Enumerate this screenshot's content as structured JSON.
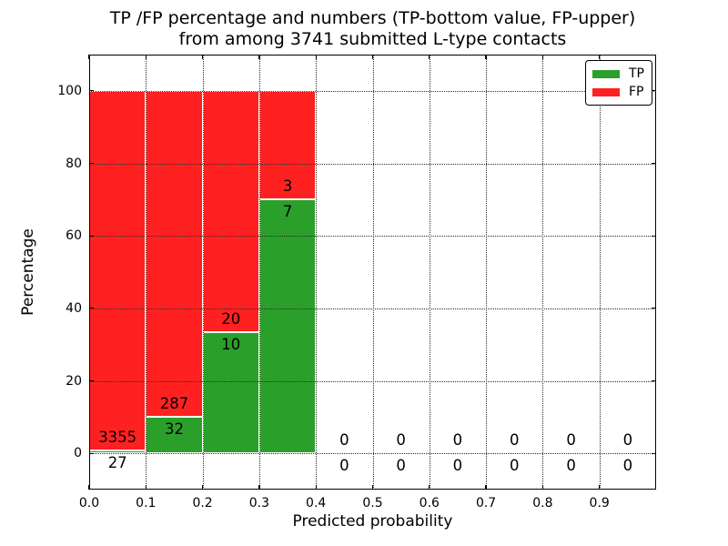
{
  "chart_data": {
    "type": "bar",
    "stacked": true,
    "title_line1": "TP /FP percentage and numbers (TP-bottom value, FP-upper)",
    "title_line2": "from among 3741 submitted L-type contacts",
    "xlabel": "Predicted probability",
    "ylabel": "Percentage",
    "xlim": [
      0.0,
      1.0
    ],
    "ylim": [
      -10,
      110
    ],
    "xticks": [
      0.0,
      0.1,
      0.2,
      0.3,
      0.4,
      0.5,
      0.6,
      0.7,
      0.8,
      0.9
    ],
    "xtick_labels": [
      "0.0",
      "0.1",
      "0.2",
      "0.3",
      "0.4",
      "0.5",
      "0.6",
      "0.7",
      "0.8",
      "0.9"
    ],
    "yticks": [
      0,
      20,
      40,
      60,
      80,
      100
    ],
    "ytick_labels": [
      "0",
      "20",
      "40",
      "60",
      "80",
      "100"
    ],
    "grid": "dotted, drawn above bars",
    "legend_position": "upper right",
    "total_contacts": 3741,
    "bins": [
      {
        "range": [
          0.0,
          0.1
        ],
        "tp": 27,
        "fp": 3355,
        "tp_pct": 0.8,
        "fp_pct": 99.2
      },
      {
        "range": [
          0.1,
          0.2
        ],
        "tp": 32,
        "fp": 287,
        "tp_pct": 10.0,
        "fp_pct": 90.0
      },
      {
        "range": [
          0.2,
          0.3
        ],
        "tp": 10,
        "fp": 20,
        "tp_pct": 33.3,
        "fp_pct": 66.7
      },
      {
        "range": [
          0.3,
          0.4
        ],
        "tp": 7,
        "fp": 3,
        "tp_pct": 70.0,
        "fp_pct": 30.0
      },
      {
        "range": [
          0.4,
          0.5
        ],
        "tp": 0,
        "fp": 0,
        "tp_pct": 0,
        "fp_pct": 0
      },
      {
        "range": [
          0.5,
          0.6
        ],
        "tp": 0,
        "fp": 0,
        "tp_pct": 0,
        "fp_pct": 0
      },
      {
        "range": [
          0.6,
          0.7
        ],
        "tp": 0,
        "fp": 0,
        "tp_pct": 0,
        "fp_pct": 0
      },
      {
        "range": [
          0.7,
          0.8
        ],
        "tp": 0,
        "fp": 0,
        "tp_pct": 0,
        "fp_pct": 0
      },
      {
        "range": [
          0.8,
          0.9
        ],
        "tp": 0,
        "fp": 0,
        "tp_pct": 0,
        "fp_pct": 0
      },
      {
        "range": [
          0.9,
          1.0
        ],
        "tp": 0,
        "fp": 0,
        "tp_pct": 0,
        "fp_pct": 0
      }
    ],
    "legend": [
      {
        "label": "TP",
        "color": "#2aa02a"
      },
      {
        "label": "FP",
        "color": "#ff2121"
      }
    ],
    "colors": {
      "tp": "#2aa02a",
      "fp": "#ff2121",
      "bar_edge": "#ffffff",
      "grid": "#2b2b2b",
      "text": "#000000",
      "background": "#ffffff"
    }
  }
}
